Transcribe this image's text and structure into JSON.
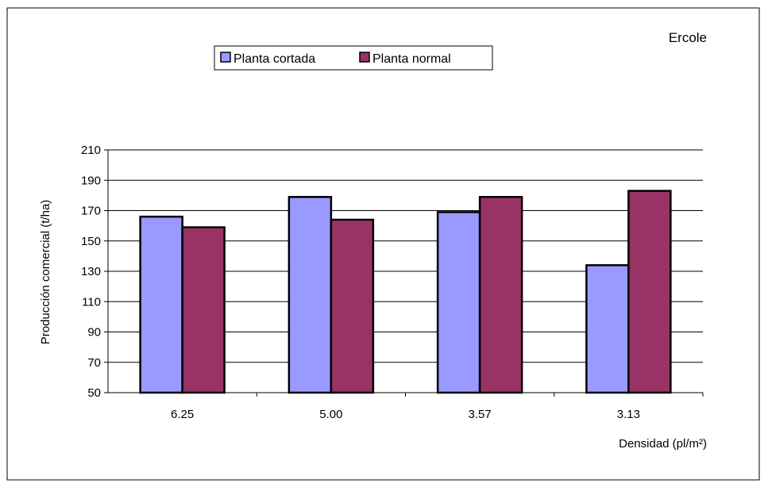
{
  "chart_data": {
    "type": "bar",
    "title": "Ercole",
    "xlabel": "Densidad (pl/m²)",
    "ylabel": "Producción comercial (t/ha)",
    "categories": [
      "6.25",
      "5.00",
      "3.57",
      "3.13"
    ],
    "ylim": [
      50,
      210
    ],
    "yticks": [
      50,
      70,
      90,
      110,
      130,
      150,
      170,
      190,
      210
    ],
    "grid": true,
    "legend_position": "top-center",
    "series": [
      {
        "name": "Planta cortada",
        "color": "#9999ff",
        "values": [
          166,
          179,
          169,
          134
        ]
      },
      {
        "name": "Planta normal",
        "color": "#993366",
        "values": [
          159,
          164,
          179,
          183
        ]
      }
    ]
  }
}
